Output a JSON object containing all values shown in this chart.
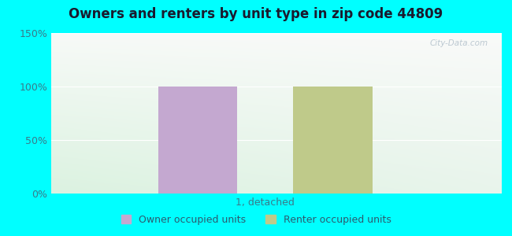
{
  "title": "Owners and renters by unit type in zip code 44809",
  "categories": [
    "1, detached"
  ],
  "owner_values": [
    100
  ],
  "renter_values": [
    100
  ],
  "owner_color": "#C4A8D0",
  "renter_color": "#BFCA8A",
  "ylim": [
    0,
    150
  ],
  "yticks": [
    0,
    50,
    100,
    150
  ],
  "ytick_labels": [
    "0%",
    "50%",
    "100%",
    "150%"
  ],
  "legend_owner": "Owner occupied units",
  "legend_renter": "Renter occupied units",
  "watermark": "City-Data.com",
  "background_outer": "#00FFFF"
}
